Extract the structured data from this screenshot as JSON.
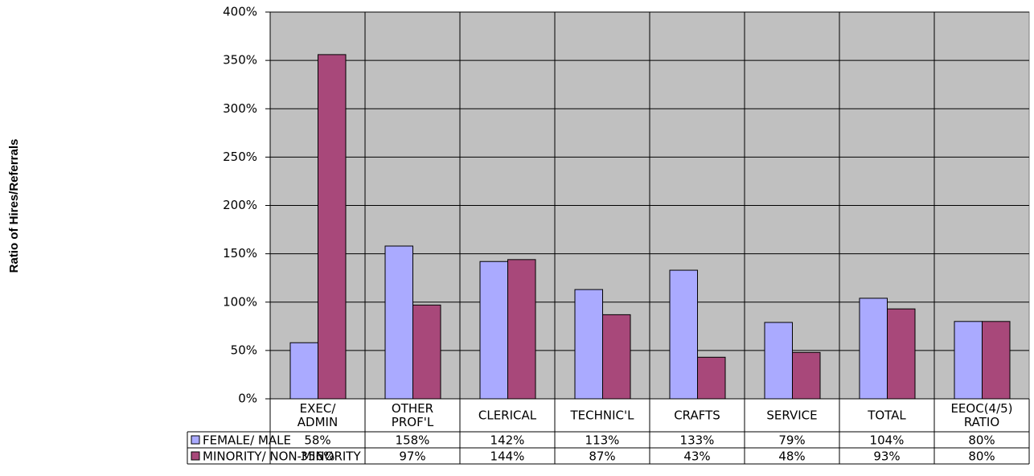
{
  "chart_data": {
    "type": "bar",
    "y_label": "Ratio of Hires/Referrals",
    "categories": [
      "EXEC/\nADMIN",
      "OTHER\nPROF'L",
      "CLERICAL",
      "TECHNIC'L",
      "CRAFTS",
      "SERVICE",
      "TOTAL",
      "EEOC(4/5)\nRATIO"
    ],
    "series": [
      {
        "name": "FEMALE/ MALE",
        "color": "#aaaaff",
        "values": [
          58,
          158,
          142,
          113,
          133,
          79,
          104,
          80
        ],
        "value_labels": [
          "58%",
          "158%",
          "142%",
          "113%",
          "133%",
          "79%",
          "104%",
          "80%"
        ]
      },
      {
        "name": "MINORITY/ NON-MINORITY",
        "color": "#a8487a",
        "values": [
          356,
          97,
          144,
          87,
          43,
          48,
          93,
          80
        ],
        "value_labels": [
          "356%",
          "97%",
          "144%",
          "87%",
          "43%",
          "48%",
          "93%",
          "80%"
        ]
      }
    ],
    "ylim": [
      0,
      400
    ],
    "yticks": [
      {
        "value": 0,
        "label": "0%"
      },
      {
        "value": 50,
        "label": "50%"
      },
      {
        "value": 100,
        "label": "100%"
      },
      {
        "value": 150,
        "label": "150%"
      },
      {
        "value": 200,
        "label": "200%"
      },
      {
        "value": 250,
        "label": "250%"
      },
      {
        "value": 300,
        "label": "300%"
      },
      {
        "value": 350,
        "label": "350%"
      },
      {
        "value": 400,
        "label": "400%"
      }
    ],
    "grid": true,
    "plot_background": "#c0c0c0"
  }
}
